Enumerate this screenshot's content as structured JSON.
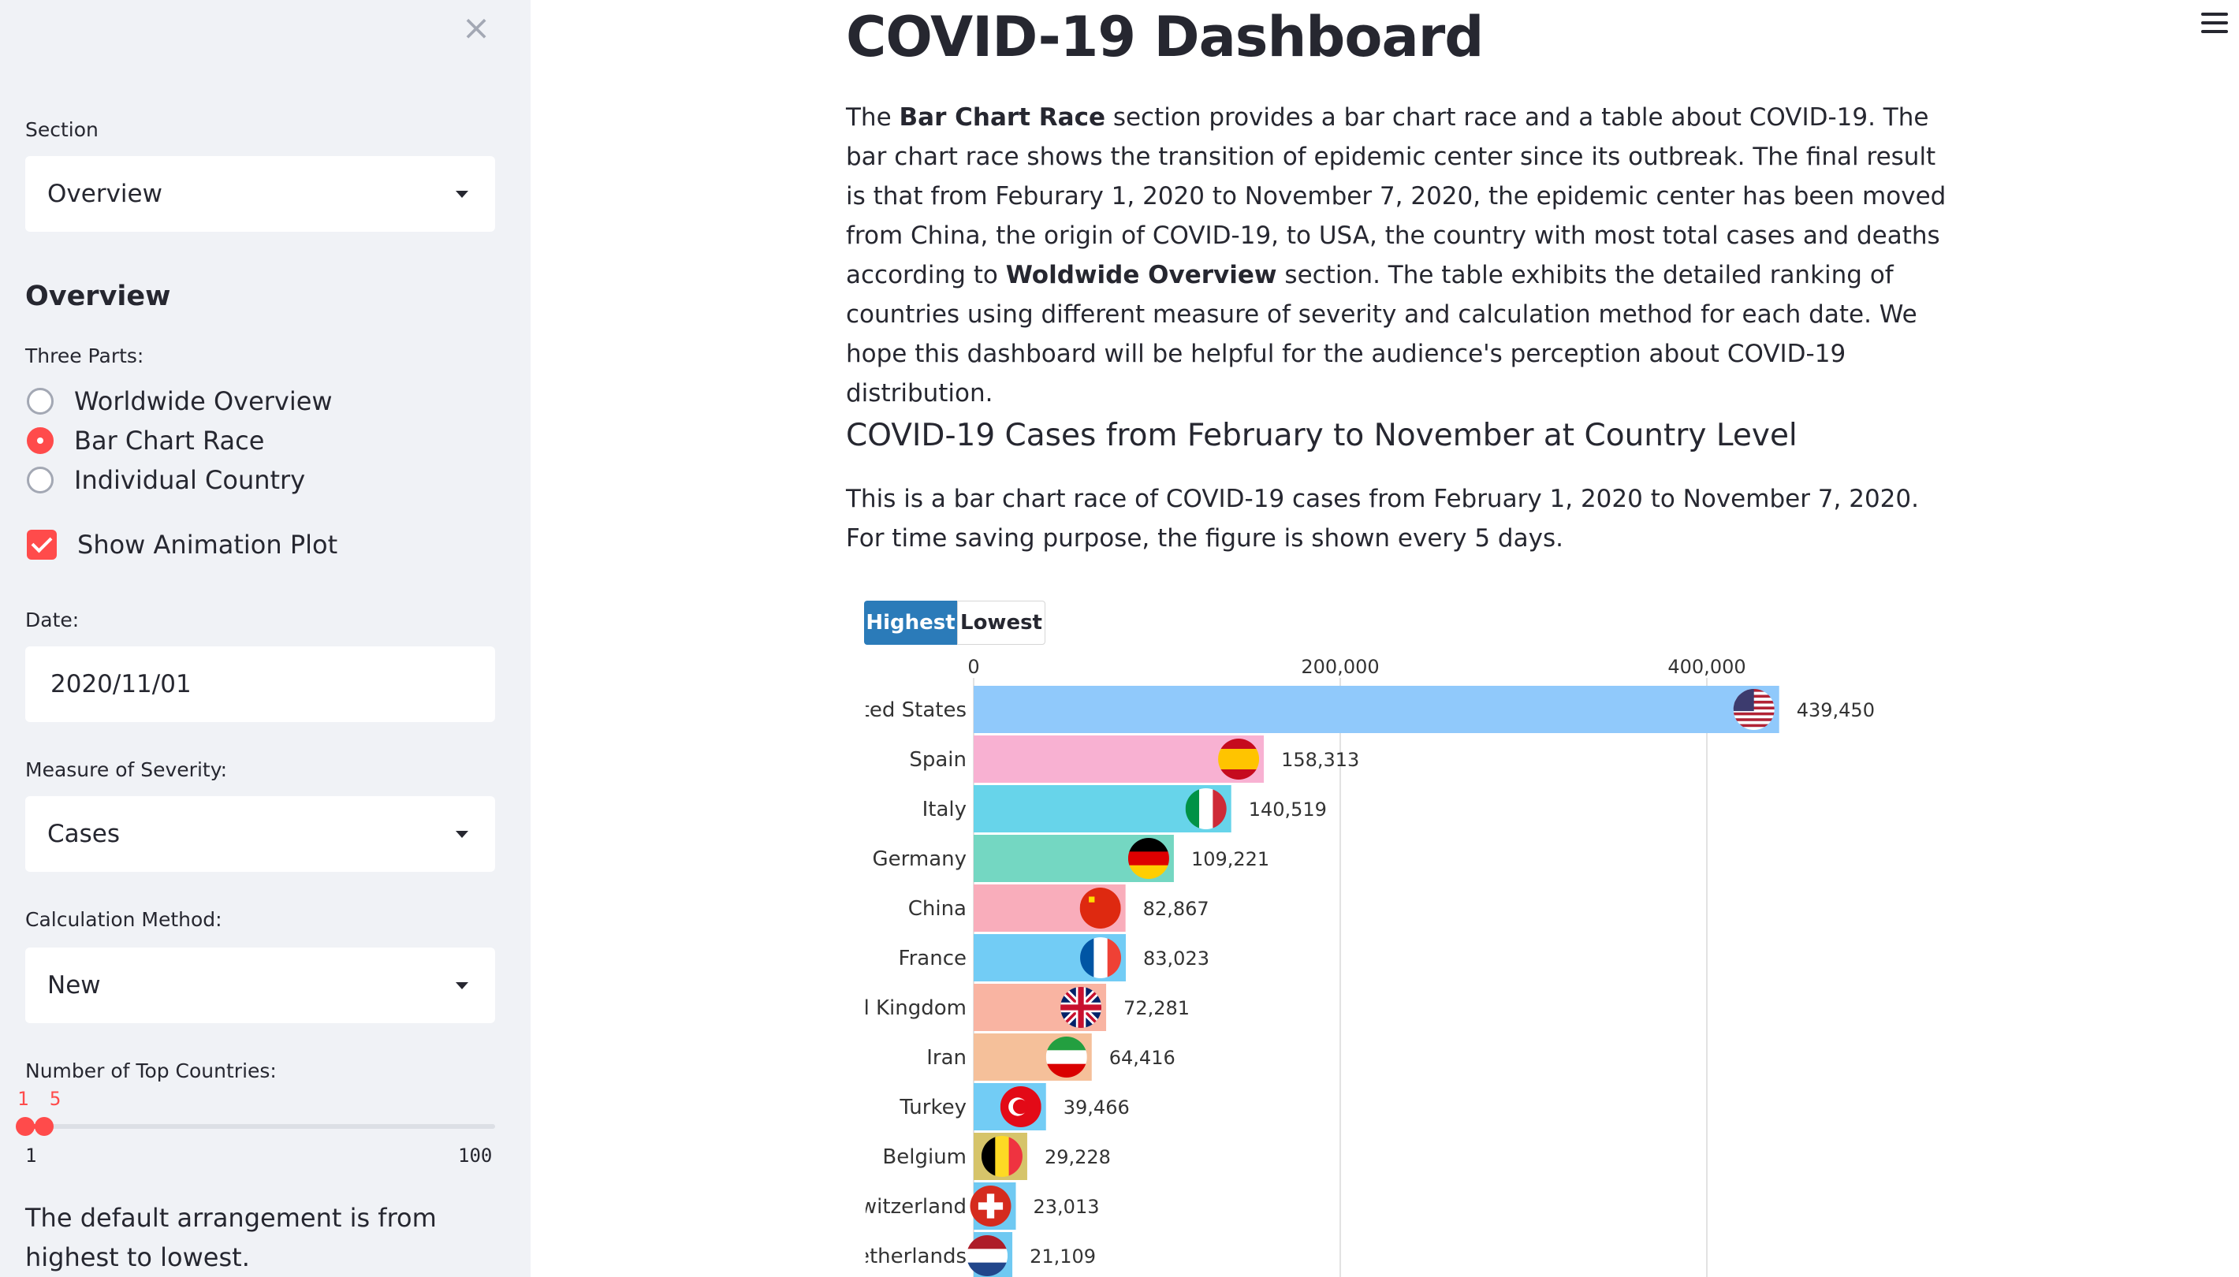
{
  "sidebar": {
    "close_icon": "close-icon",
    "section_label": "Section",
    "section_value": "Overview",
    "heading": "Overview",
    "parts_label": "Three Parts:",
    "parts": [
      {
        "label": "Worldwide Overview",
        "selected": false
      },
      {
        "label": "Bar Chart Race",
        "selected": true
      },
      {
        "label": "Individual Country",
        "selected": false
      }
    ],
    "show_animation_label": "Show Animation Plot",
    "show_animation_checked": true,
    "date_label": "Date:",
    "date_value": "2020/11/01",
    "severity_label": "Measure of Severity:",
    "severity_value": "Cases",
    "method_label": "Calculation Method:",
    "method_value": "New",
    "top_label": "Number of Top Countries:",
    "top_value": "1 5",
    "top_min": "1",
    "top_max": "100",
    "note": "The default arrangement is from highest to lowest."
  },
  "main": {
    "menu_icon": "hamburger-icon",
    "title": "COVID-19 Dashboard",
    "intro_parts": [
      {
        "text": "The ",
        "bold": false
      },
      {
        "text": "Bar Chart Race",
        "bold": true
      },
      {
        "text": " section provides a bar chart race and a table about COVID-19. The bar chart race shows the transition of epidemic center since its outbreak. The final result is that from Feburary 1, 2020 to November 7, 2020, the epidemic center has been moved from China, the origin of COVID-19, to USA, the country with most total cases and deaths according to ",
        "bold": false
      },
      {
        "text": "Woldwide Overview",
        "bold": true
      },
      {
        "text": " section. The table exhibits the detailed ranking of countries using different measure of severity and calculation method for each date. We hope this dashboard will be helpful for the audience's perception about COVID-19 distribution.",
        "bold": false
      }
    ],
    "subtitle": "COVID-19 Cases from February to November at Country Level",
    "description": "This is a bar chart race of COVID-19 cases from February 1, 2020 to November 7, 2020. For time saving purpose, the figure is shown every 5 days.",
    "toggle_highest": "Highest",
    "toggle_lowest": "Lowest"
  },
  "chart_data": {
    "type": "bar",
    "orientation": "horizontal",
    "title": "",
    "xlim": [
      0,
      440000
    ],
    "x_ticks": [
      {
        "value": 0,
        "label": "0"
      },
      {
        "value": 200000,
        "label": "200,000"
      },
      {
        "value": 400000,
        "label": "400,000"
      }
    ],
    "grid": true,
    "categories": [
      "ited States",
      "Spain",
      "Italy",
      "Germany",
      "China",
      "France",
      "d Kingdom",
      "Iran",
      "Turkey",
      "Belgium",
      "witzerland",
      "letherlands"
    ],
    "values": [
      439450,
      158313,
      140519,
      109221,
      82867,
      83023,
      72281,
      64416,
      39466,
      29228,
      23013,
      21109
    ],
    "value_labels": [
      "439,450",
      "158,313",
      "140,519",
      "109,221",
      "82,867",
      "83,023",
      "72,281",
      "64,416",
      "39,466",
      "29,228",
      "23,013",
      "21,109"
    ],
    "colors": [
      "#90c9fb",
      "#f8b1d2",
      "#67d4ea",
      "#74d7c2",
      "#f9adbb",
      "#72ccf5",
      "#f9b4a2",
      "#f5c09a",
      "#72ccf5",
      "#d6c46a",
      "#6fc9f2",
      "#6fc9f2"
    ],
    "flag_icons": [
      "us-flag-icon",
      "spain-flag-icon",
      "italy-flag-icon",
      "germany-flag-icon",
      "china-flag-icon",
      "france-flag-icon",
      "uk-flag-icon",
      "iran-flag-icon",
      "turkey-flag-icon",
      "belgium-flag-icon",
      "switzerland-flag-icon",
      "netherlands-flag-icon"
    ]
  }
}
